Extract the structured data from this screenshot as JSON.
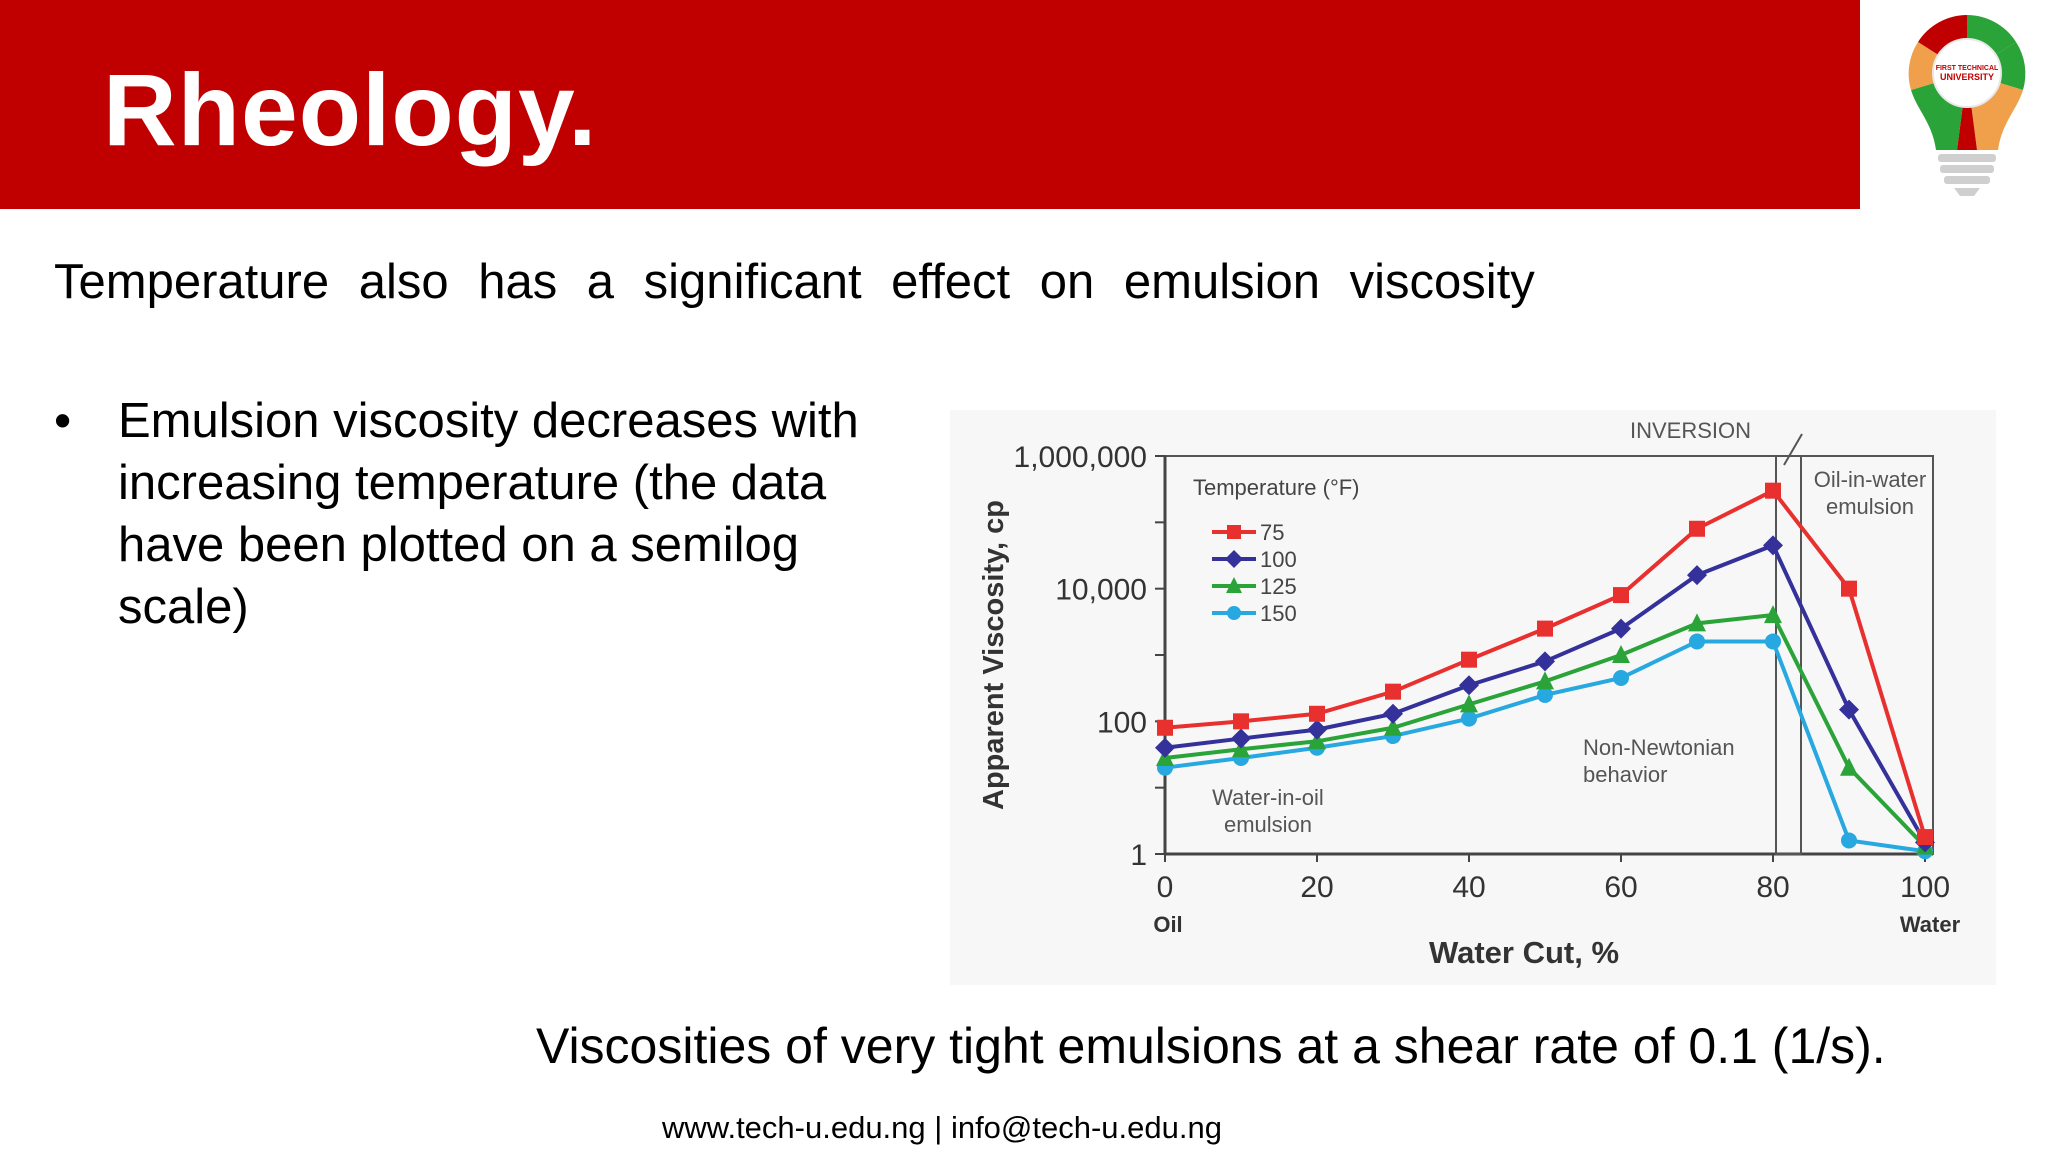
{
  "slide": {
    "title": "Rheology.",
    "subtitle": "Temperature also has a significant effect on emulsion viscosity",
    "bullets": [
      "Emulsion viscosity decreases with increasing temperature (the data have been plotted on a semilog scale)"
    ],
    "caption": "Viscosities of very tight emulsions at a shear rate of 0.1 (1/s).",
    "footer": {
      "website": "www.tech-u.edu.ng",
      "separator": " | ",
      "email": "info@tech-u.edu.ng"
    },
    "logo": {
      "text_line1": "FIRST TECHNICAL",
      "text_line2": "UNIVERSITY"
    }
  },
  "colors": {
    "header": "#c00000",
    "series_75": "#e8302f",
    "series_100": "#35319a",
    "series_125": "#2aa338",
    "series_150": "#27a8e0"
  },
  "chart_data": {
    "type": "line",
    "y_scale": "log",
    "xlabel": "Water Cut, %",
    "ylabel": "Apparent Viscosity, cp",
    "xlim": [
      0,
      100
    ],
    "ylim": [
      1,
      1000000
    ],
    "x_ticks": [
      "0",
      "20",
      "40",
      "60",
      "80",
      "100"
    ],
    "x_tick_sublabels": {
      "0": "Oil",
      "100": "Water"
    },
    "y_ticks": [
      "1",
      "100",
      "10,000",
      "1,000,000"
    ],
    "legend_title": "Temperature (°F)",
    "legend_position": "top-left",
    "x": [
      0,
      10,
      20,
      30,
      40,
      50,
      60,
      70,
      80,
      90,
      100
    ],
    "series": [
      {
        "name": "75",
        "color": "#e8302f",
        "marker": "square",
        "values": [
          80,
          100,
          130,
          280,
          850,
          2500,
          8000,
          80000,
          300000,
          10000,
          1.8
        ]
      },
      {
        "name": "100",
        "color": "#35319a",
        "marker": "diamond",
        "values": [
          40,
          55,
          75,
          130,
          350,
          800,
          2500,
          16000,
          45000,
          150,
          1.5
        ]
      },
      {
        "name": "125",
        "color": "#2aa338",
        "marker": "triangle",
        "values": [
          28,
          38,
          50,
          80,
          180,
          400,
          1000,
          3000,
          4000,
          20,
          1.3
        ]
      },
      {
        "name": "150",
        "color": "#27a8e0",
        "marker": "circle",
        "values": [
          20,
          28,
          40,
          60,
          110,
          250,
          450,
          1600,
          1600,
          1.6,
          1.1
        ]
      }
    ],
    "annotations": {
      "inversion": "INVERSION",
      "inversion_x": 80,
      "oil_in_water": "Oil-in-water emulsion",
      "water_in_oil": "Water-in-oil emulsion",
      "non_newtonian": "Non-Newtonian behavior"
    },
    "grid": false
  }
}
